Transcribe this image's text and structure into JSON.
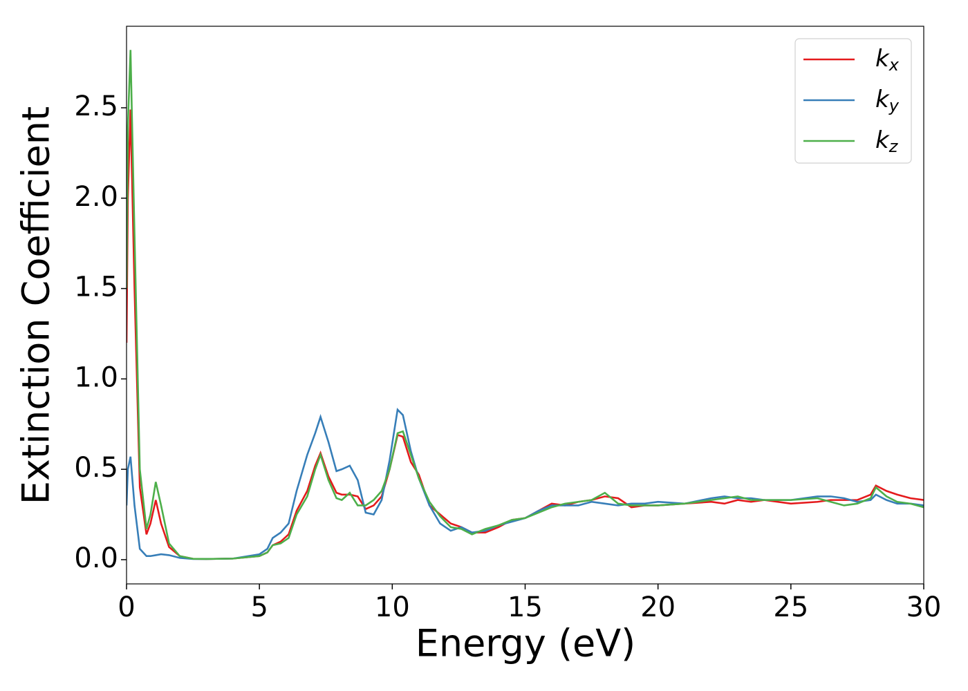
{
  "chart_data": {
    "type": "line",
    "xlabel": "Energy (eV)",
    "ylabel": "Extinction Coefficient",
    "x": [
      0,
      0.05,
      0.15,
      0.3,
      0.5,
      0.75,
      0.9,
      1.1,
      1.3,
      1.6,
      2,
      2.5,
      3,
      4,
      5,
      5.3,
      5.5,
      5.8,
      6.1,
      6.4,
      6.8,
      7.1,
      7.3,
      7.6,
      7.9,
      8.1,
      8.4,
      8.7,
      9.0,
      9.3,
      9.6,
      9.9,
      10.2,
      10.4,
      10.7,
      11.0,
      11.4,
      11.8,
      12.2,
      12.6,
      13.0,
      13.5,
      14,
      14.5,
      15,
      15.5,
      16,
      16.5,
      17,
      17.5,
      18,
      18.5,
      19,
      19.5,
      20,
      21,
      22,
      22.5,
      23,
      23.5,
      24,
      25,
      26,
      26.5,
      27,
      27.5,
      28,
      28.2,
      28.6,
      29,
      29.5,
      30
    ],
    "series": [
      {
        "name": "kx",
        "color": "#e41a1c",
        "values": [
          1.2,
          2.0,
          2.49,
          1.5,
          0.4,
          0.14,
          0.2,
          0.33,
          0.2,
          0.07,
          0.02,
          0.005,
          0.004,
          0.006,
          0.02,
          0.04,
          0.08,
          0.1,
          0.14,
          0.27,
          0.38,
          0.52,
          0.59,
          0.46,
          0.37,
          0.36,
          0.36,
          0.35,
          0.28,
          0.3,
          0.35,
          0.5,
          0.69,
          0.68,
          0.54,
          0.47,
          0.3,
          0.25,
          0.2,
          0.18,
          0.15,
          0.15,
          0.18,
          0.22,
          0.23,
          0.27,
          0.31,
          0.3,
          0.32,
          0.33,
          0.35,
          0.34,
          0.29,
          0.3,
          0.3,
          0.31,
          0.32,
          0.31,
          0.33,
          0.32,
          0.33,
          0.31,
          0.32,
          0.33,
          0.33,
          0.33,
          0.36,
          0.41,
          0.38,
          0.36,
          0.34,
          0.33
        ]
      },
      {
        "name": "ky",
        "color": "#377eb8",
        "values": [
          0.3,
          0.5,
          0.57,
          0.3,
          0.06,
          0.02,
          0.02,
          0.025,
          0.03,
          0.025,
          0.01,
          0.004,
          0.004,
          0.006,
          0.03,
          0.06,
          0.12,
          0.15,
          0.2,
          0.38,
          0.58,
          0.7,
          0.79,
          0.65,
          0.49,
          0.5,
          0.52,
          0.44,
          0.26,
          0.25,
          0.33,
          0.55,
          0.83,
          0.8,
          0.6,
          0.45,
          0.3,
          0.2,
          0.16,
          0.18,
          0.15,
          0.16,
          0.19,
          0.21,
          0.23,
          0.27,
          0.3,
          0.3,
          0.3,
          0.32,
          0.31,
          0.3,
          0.31,
          0.31,
          0.32,
          0.31,
          0.34,
          0.35,
          0.34,
          0.34,
          0.33,
          0.33,
          0.35,
          0.35,
          0.34,
          0.32,
          0.33,
          0.36,
          0.33,
          0.31,
          0.31,
          0.3
        ]
      },
      {
        "name": "kz",
        "color": "#4daf4a",
        "values": [
          1.5,
          2.4,
          2.82,
          1.8,
          0.5,
          0.17,
          0.25,
          0.43,
          0.3,
          0.09,
          0.02,
          0.005,
          0.004,
          0.006,
          0.02,
          0.04,
          0.08,
          0.09,
          0.12,
          0.25,
          0.35,
          0.5,
          0.58,
          0.44,
          0.34,
          0.33,
          0.37,
          0.3,
          0.3,
          0.33,
          0.38,
          0.5,
          0.7,
          0.71,
          0.58,
          0.45,
          0.32,
          0.24,
          0.18,
          0.17,
          0.14,
          0.17,
          0.19,
          0.22,
          0.23,
          0.26,
          0.29,
          0.31,
          0.32,
          0.33,
          0.37,
          0.31,
          0.3,
          0.3,
          0.3,
          0.31,
          0.33,
          0.34,
          0.35,
          0.33,
          0.33,
          0.33,
          0.34,
          0.32,
          0.3,
          0.31,
          0.34,
          0.4,
          0.35,
          0.32,
          0.31,
          0.29
        ]
      }
    ],
    "xlim": [
      0,
      30
    ],
    "xticks": [
      0,
      5,
      10,
      15,
      20,
      25,
      30
    ],
    "ylim": [
      -0.134,
      2.951
    ],
    "yticks": [
      {
        "value": 0,
        "label": "0.0"
      },
      0.5,
      {
        "value": 1,
        "label": "1.0"
      },
      1.5,
      {
        "value": 2,
        "label": "2.0"
      },
      2.5
    ],
    "legend": "upper right",
    "grid": false
  }
}
